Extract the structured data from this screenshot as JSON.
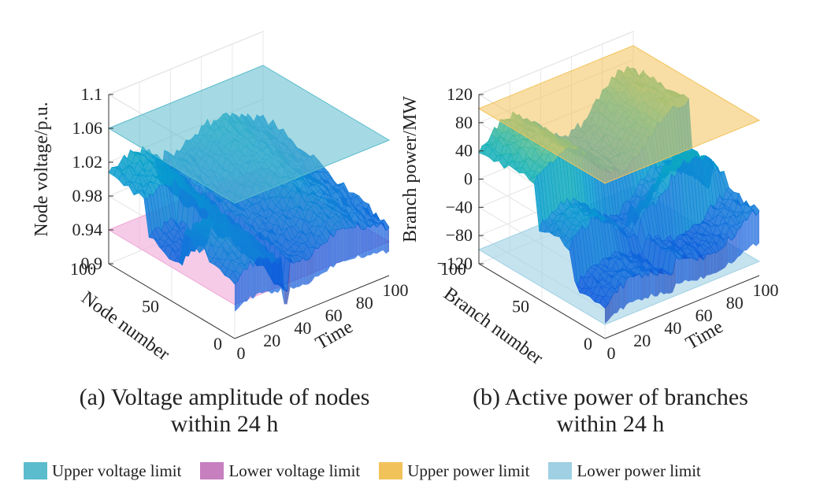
{
  "chart_data": [
    {
      "type": "surface3d",
      "zlabel": "Node voltage/p.u.",
      "ylabel": "Node number",
      "xlabel": "Time",
      "z_ticks": [
        "0.9",
        "0.94",
        "0.98",
        "1.02",
        "1.06",
        "1.1"
      ],
      "y_ticks": [
        "0",
        "50",
        "100"
      ],
      "x_ticks": [
        "0",
        "20",
        "40",
        "60",
        "80",
        "100"
      ],
      "zlim": [
        0.9,
        1.1
      ],
      "ylim": [
        0,
        100
      ],
      "xlim": [
        0,
        100
      ],
      "upper_limit": 1.06,
      "lower_limit": 0.94,
      "caption_line1": "(a) Voltage amplitude of nodes",
      "caption_line2": "within 24 h"
    },
    {
      "type": "surface3d",
      "zlabel": "Branch power/MW",
      "ylabel": "Branch number",
      "xlabel": "Time",
      "z_ticks": [
        "−120",
        "−80",
        "−40",
        "0",
        "40",
        "80",
        "120"
      ],
      "y_ticks": [
        "0",
        "50",
        "100"
      ],
      "x_ticks": [
        "0",
        "20",
        "40",
        "60",
        "80",
        "100"
      ],
      "zlim": [
        -120,
        120
      ],
      "ylim": [
        0,
        100
      ],
      "xlim": [
        0,
        100
      ],
      "upper_limit": 100,
      "lower_limit": -100,
      "caption_line1": "(b) Active power of branches",
      "caption_line2": "within 24 h"
    }
  ],
  "legend": [
    {
      "label": "Upper voltage limit",
      "color": "#5bbccd"
    },
    {
      "label": "Lower voltage limit",
      "color": "#c77fc0"
    },
    {
      "label": "Upper power limit",
      "color": "#f2c25a"
    },
    {
      "label": "Lower power limit",
      "color": "#9fd0e4"
    }
  ]
}
